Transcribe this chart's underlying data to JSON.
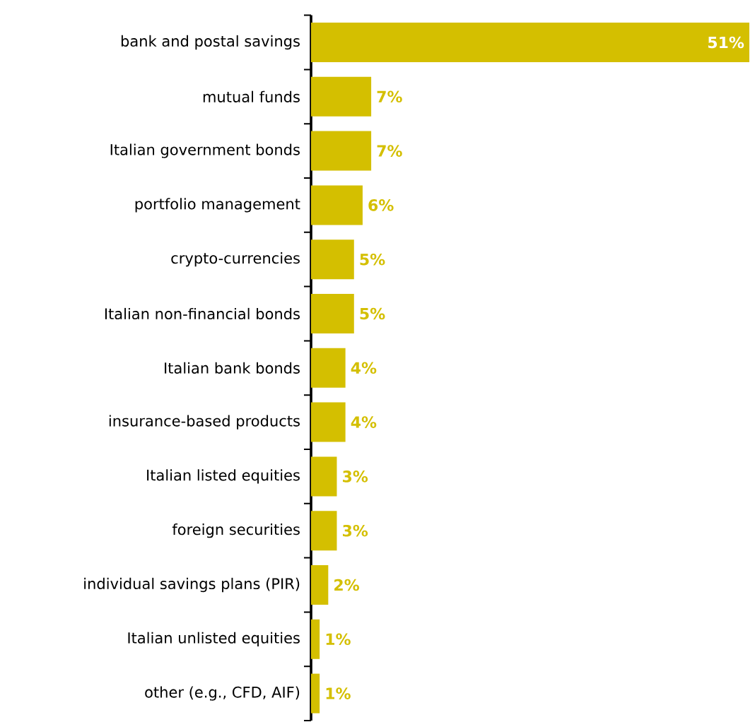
{
  "chart_data": {
    "type": "bar",
    "orientation": "horizontal",
    "color": "#d4bf00",
    "categories": [
      "bank and postal savings",
      "mutual funds",
      "Italian government bonds",
      "portfolio management",
      "crypto-currencies",
      "Italian non-financial bonds",
      "Italian bank bonds",
      "insurance-based products",
      "Italian listed equities",
      "foreign securities",
      "individual savings plans (PIR)",
      "Italian unlisted equities",
      "other (e.g., CFD, AIF)"
    ],
    "values": [
      51,
      7,
      7,
      6,
      5,
      5,
      4,
      4,
      3,
      3,
      2,
      1,
      1
    ],
    "value_labels": [
      "51%",
      "7%",
      "7%",
      "6%",
      "5%",
      "5%",
      "4%",
      "4%",
      "3%",
      "3%",
      "2%",
      "1%",
      "1%"
    ]
  }
}
